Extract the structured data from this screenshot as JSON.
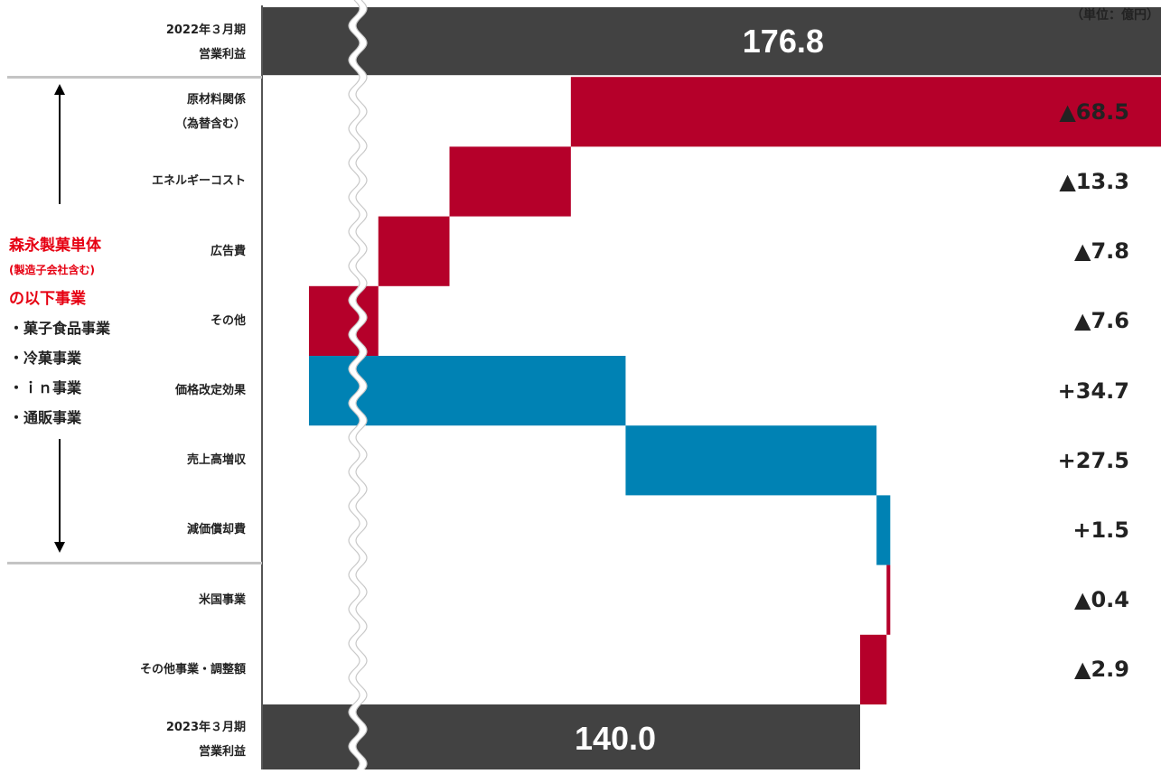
{
  "unit_label": "（単位：億円）",
  "colors": {
    "total": "#424242",
    "decrease": "#b5002a",
    "increase": "#0082b4",
    "separator": "#c4c4c4",
    "left_heading": "#e60012"
  },
  "left_block": {
    "heading_lines": [
      "森永製菓単体",
      "(製造子会社含む)",
      "の以下事業"
    ],
    "items": [
      "・菓子食品事業",
      "・冷菓事業",
      "・ｉｎ事業",
      "・通販事業"
    ]
  },
  "chart_data": {
    "type": "waterfall",
    "axis_break": true,
    "start": {
      "label_lines": [
        "2022年３月期",
        "営業利益"
      ],
      "value": 176.8,
      "value_label": "176.8"
    },
    "end": {
      "label_lines": [
        "2023年３月期",
        "営業利益"
      ],
      "value": 140.0,
      "value_label": "140.0"
    },
    "steps": [
      {
        "label_lines": [
          "原材料関係",
          "（為替含む）"
        ],
        "delta": -68.5,
        "value_label": "▲68.5"
      },
      {
        "label_lines": [
          "エネルギーコスト"
        ],
        "delta": -13.3,
        "value_label": "▲13.3"
      },
      {
        "label_lines": [
          "広告費"
        ],
        "delta": -7.8,
        "value_label": "▲7.8"
      },
      {
        "label_lines": [
          "その他"
        ],
        "delta": -7.6,
        "value_label": "▲7.6"
      },
      {
        "label_lines": [
          "価格改定効果"
        ],
        "delta": 34.7,
        "value_label": "+34.7"
      },
      {
        "label_lines": [
          "売上高増収"
        ],
        "delta": 27.5,
        "value_label": "+27.5"
      },
      {
        "label_lines": [
          "減価償却費"
        ],
        "delta": 1.5,
        "value_label": "+1.5"
      },
      {
        "label_lines": [
          "米国事業"
        ],
        "delta": -0.4,
        "value_label": "▲0.4"
      },
      {
        "label_lines": [
          "その他事業・調整額"
        ],
        "delta": -2.9,
        "value_label": "▲2.9"
      }
    ]
  }
}
